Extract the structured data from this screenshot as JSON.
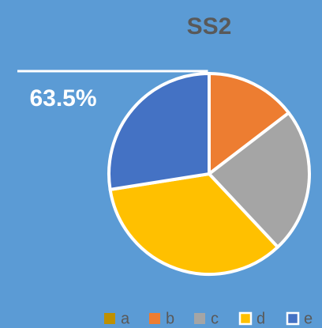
{
  "chart_data": {
    "type": "pie",
    "title": "SS2",
    "categories": [
      "a",
      "b",
      "c",
      "d",
      "e"
    ],
    "values": [
      0,
      14.6,
      23.4,
      34.5,
      27.5
    ],
    "colors": [
      "#bf9000",
      "#ed7d31",
      "#a5a5a5",
      "#ffc000",
      "#4472c4"
    ],
    "annotation": "63.5%",
    "legend": "bottom"
  }
}
